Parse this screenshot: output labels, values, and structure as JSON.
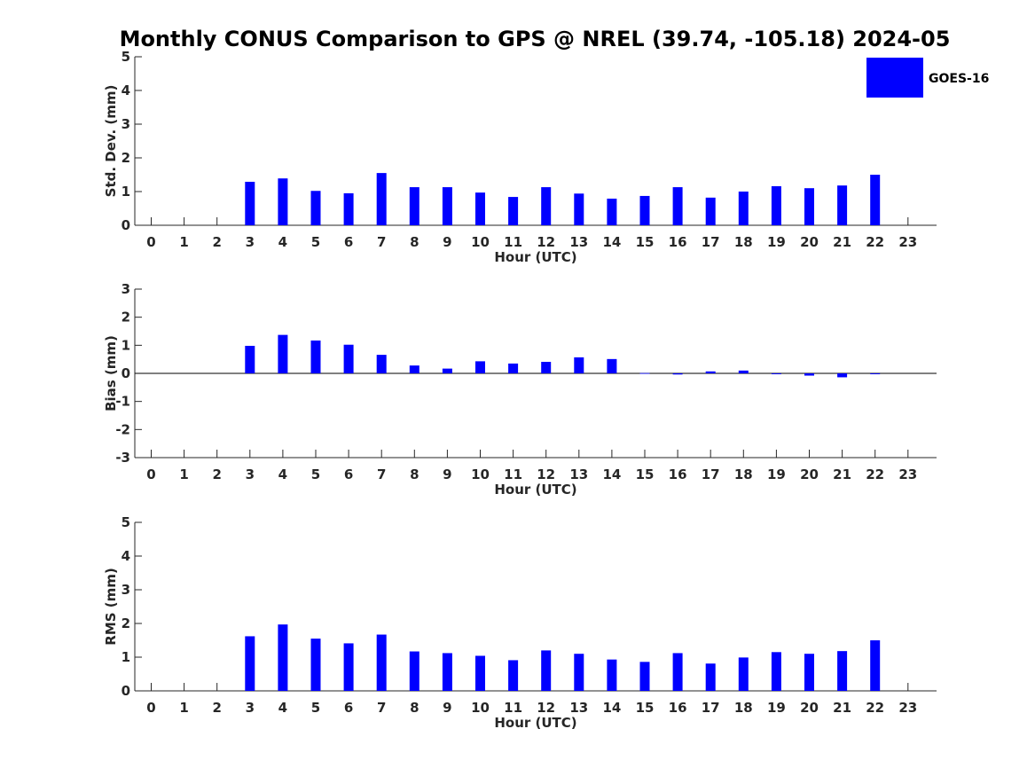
{
  "title": "Monthly CONUS Comparison to GPS @ NREL (39.74, -105.18) 2024-05",
  "colors": {
    "bar": "#0000ff",
    "axis": "#262626",
    "zero_line": "#000000"
  },
  "chart_data": [
    {
      "type": "bar",
      "name": "std",
      "categories": [
        "0",
        "1",
        "2",
        "3",
        "4",
        "5",
        "6",
        "7",
        "8",
        "9",
        "10",
        "11",
        "12",
        "13",
        "14",
        "15",
        "16",
        "17",
        "18",
        "19",
        "20",
        "21",
        "22",
        "23"
      ],
      "series": [
        {
          "name": "GOES-16",
          "values": [
            null,
            null,
            null,
            1.29,
            1.39,
            1.02,
            0.95,
            1.55,
            1.13,
            1.13,
            0.97,
            0.84,
            1.13,
            0.94,
            0.79,
            0.87,
            1.13,
            0.82,
            1.0,
            1.16,
            1.1,
            1.18,
            1.5,
            null
          ]
        }
      ],
      "xlabel": "Hour (UTC)",
      "ylabel": "Std. Dev. (mm)",
      "ylim": [
        0,
        5
      ],
      "yticks": [
        "0",
        "1",
        "2",
        "3",
        "4",
        "5"
      ],
      "legend": {
        "label": "GOES-16",
        "placement": "top-right"
      }
    },
    {
      "type": "bar",
      "name": "bias",
      "categories": [
        "0",
        "1",
        "2",
        "3",
        "4",
        "5",
        "6",
        "7",
        "8",
        "9",
        "10",
        "11",
        "12",
        "13",
        "14",
        "15",
        "16",
        "17",
        "18",
        "19",
        "20",
        "21",
        "22",
        "23"
      ],
      "series": [
        {
          "name": "GOES-16",
          "values": [
            null,
            null,
            null,
            0.98,
            1.37,
            1.17,
            1.02,
            0.66,
            0.28,
            0.17,
            0.43,
            0.35,
            0.41,
            0.57,
            0.51,
            0.01,
            -0.04,
            0.07,
            0.1,
            -0.03,
            -0.08,
            -0.14,
            -0.03,
            null
          ]
        }
      ],
      "xlabel": "Hour (UTC)",
      "ylabel": "Bias (mm)",
      "ylim": [
        -3,
        3
      ],
      "yticks": [
        "-3",
        "-2",
        "-1",
        "0",
        "1",
        "2",
        "3"
      ]
    },
    {
      "type": "bar",
      "name": "rms",
      "categories": [
        "0",
        "1",
        "2",
        "3",
        "4",
        "5",
        "6",
        "7",
        "8",
        "9",
        "10",
        "11",
        "12",
        "13",
        "14",
        "15",
        "16",
        "17",
        "18",
        "19",
        "20",
        "21",
        "22",
        "23"
      ],
      "series": [
        {
          "name": "GOES-16",
          "values": [
            null,
            null,
            null,
            1.62,
            1.97,
            1.55,
            1.41,
            1.67,
            1.17,
            1.12,
            1.04,
            0.91,
            1.2,
            1.1,
            0.93,
            0.86,
            1.12,
            0.81,
            0.99,
            1.15,
            1.1,
            1.18,
            1.5,
            null
          ]
        }
      ],
      "xlabel": "Hour (UTC)",
      "ylabel": "RMS (mm)",
      "ylim": [
        0,
        5
      ],
      "yticks": [
        "0",
        "1",
        "2",
        "3",
        "4",
        "5"
      ]
    }
  ]
}
